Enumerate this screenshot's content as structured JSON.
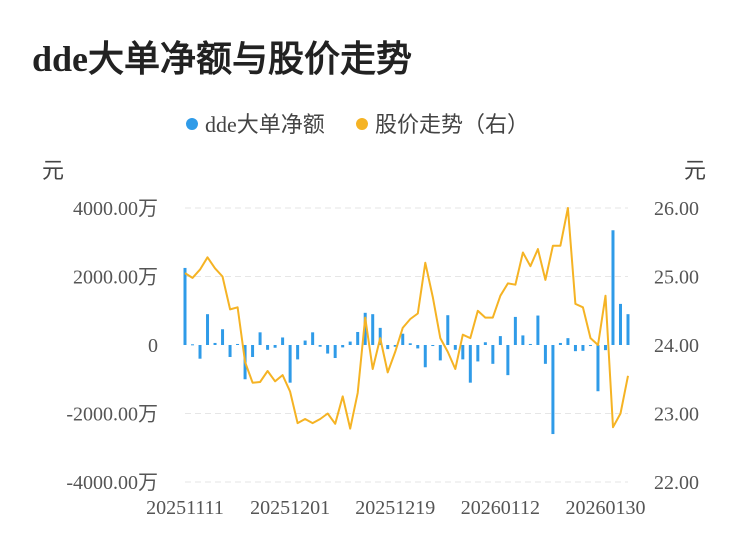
{
  "page_title": "dde大单净额与股价走势",
  "chart_data": {
    "type": "bar+line",
    "title": "dde大单净额与股价走势",
    "legend": {
      "placement": "top-center",
      "items": [
        {
          "label": "dde大单净额",
          "color": "#2f9be8"
        },
        {
          "label": "股价走势（右）",
          "color": "#f5b324"
        }
      ]
    },
    "y_left": {
      "unit": "元",
      "ylim": [
        -4000,
        4000
      ],
      "ticks": [
        4000,
        2000,
        0,
        -2000,
        -4000
      ],
      "tick_labels": [
        "4000.00万",
        "2000.00万",
        "0",
        "-2000.00万",
        "-4000.00万"
      ]
    },
    "y_right": {
      "unit": "元",
      "ylim": [
        22,
        26
      ],
      "ticks": [
        26,
        25,
        24,
        23,
        22
      ],
      "tick_labels": [
        "26.00",
        "25.00",
        "24.00",
        "23.00",
        "22.00"
      ]
    },
    "x_tick_labels": [
      {
        "index": 0,
        "label": "20251111"
      },
      {
        "index": 14,
        "label": "20251201"
      },
      {
        "index": 28,
        "label": "20251219"
      },
      {
        "index": 42,
        "label": "20260112"
      },
      {
        "index": 56,
        "label": "20260130"
      }
    ],
    "grid": true,
    "series": [
      {
        "name": "dde大单净额",
        "type": "bar",
        "color": "#2f9be8",
        "values": [
          2250,
          20,
          -400,
          900,
          60,
          460,
          -350,
          30,
          -1000,
          -350,
          370,
          -140,
          -80,
          220,
          -1100,
          -420,
          130,
          370,
          -50,
          -250,
          -380,
          -70,
          100,
          380,
          940,
          900,
          500,
          -120,
          -50,
          330,
          50,
          -100,
          -650,
          -30,
          -450,
          870,
          -140,
          -420,
          -1100,
          -480,
          80,
          -550,
          260,
          -880,
          820,
          280,
          30,
          860,
          -550,
          -2600,
          60,
          200,
          -180,
          -170,
          -30,
          -1350,
          -150,
          3350,
          1200,
          900
        ]
      },
      {
        "name": "股价走势（右）",
        "type": "line",
        "color": "#f5b324",
        "values": [
          25.05,
          24.98,
          25.1,
          25.28,
          25.12,
          25.0,
          24.52,
          24.55,
          23.75,
          23.45,
          23.46,
          23.62,
          23.47,
          23.56,
          23.32,
          22.86,
          22.92,
          22.86,
          22.92,
          23.0,
          22.85,
          23.25,
          22.78,
          23.3,
          24.4,
          23.65,
          24.1,
          23.6,
          23.9,
          24.25,
          24.38,
          24.46,
          25.2,
          24.7,
          24.1,
          23.9,
          23.65,
          24.15,
          24.1,
          24.5,
          24.4,
          24.4,
          24.72,
          24.9,
          24.88,
          25.35,
          25.15,
          25.4,
          24.95,
          25.45,
          25.45,
          26.0,
          24.6,
          24.55,
          24.1,
          24.0,
          24.72,
          22.8,
          23.0,
          23.55
        ]
      }
    ]
  }
}
